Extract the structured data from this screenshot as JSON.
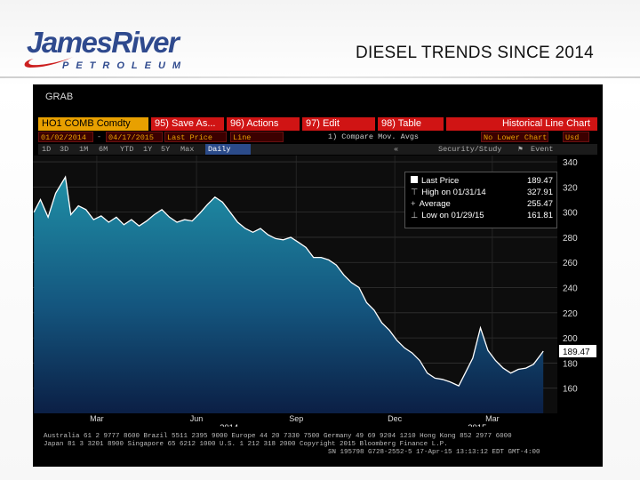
{
  "header": {
    "logo_main": "JamesRiver",
    "logo_sub": "PETROLEUM",
    "title": "DIESEL TRENDS SINCE 2014"
  },
  "terminal": {
    "grab": "GRAB",
    "ticker": "HO1 COMB Comdty",
    "menu": {
      "save": "95) Save As...",
      "actions": "96) Actions",
      "edit": "97) Edit",
      "table": "98) Table",
      "view_title": "Historical Line Chart"
    },
    "options": {
      "start_date": "01/02/2014",
      "end_date": "04/17/2015",
      "field": "Last Price",
      "style": "Line",
      "compare": "1) Compare Mov. Avgs",
      "lower_chart": "No Lower Chart",
      "currency": "Usd"
    },
    "periods": [
      "1D",
      "3D",
      "1M",
      "6M",
      "YTD",
      "1Y",
      "5Y",
      "Max"
    ],
    "frequency": "Daily",
    "tools": {
      "security": "Security/Study",
      "events": "Event"
    },
    "legend": {
      "last_label": "Last Price",
      "last_value": "189.47",
      "high_label": "High on 01/31/14",
      "high_value": "327.91",
      "avg_label": "Average",
      "avg_value": "255.47",
      "low_label": "Low on 01/29/15",
      "low_value": "161.81"
    },
    "footer_line1": "Australia 61 2 9777 8600 Brazil 5511 2395 9000 Europe 44 20 7330 7500 Germany 49 69 9204 1210 Hong Kong 852 2977 6000",
    "footer_line2": "Japan 81 3 3201 8900     Singapore 65 6212 1000     U.S. 1 212 318 2000     Copyright 2015 Bloomberg Finance L.P.",
    "footer_line3": "SN 195798 G728-2552-5 17-Apr-15 13:13:12 EDT  GMT-4:00"
  },
  "chart_data": {
    "type": "area",
    "title": "",
    "xlabel": "",
    "ylabel": "",
    "x_ticks": [
      "Mar",
      "Jun",
      "Sep",
      "Dec",
      "Mar"
    ],
    "year_labels": [
      "2014",
      "2015"
    ],
    "y_ticks": [
      160,
      180,
      200,
      220,
      240,
      260,
      280,
      300,
      320,
      340
    ],
    "ylim": [
      140,
      345
    ],
    "last_price_tag": "189.47",
    "grid": true,
    "series": [
      {
        "dates": [
          "2014-01-02",
          "2014-01-08",
          "2014-01-15",
          "2014-01-22",
          "2014-01-31",
          "2014-02-05",
          "2014-02-12",
          "2014-02-19",
          "2014-02-26",
          "2014-03-05",
          "2014-03-12",
          "2014-03-19",
          "2014-03-26",
          "2014-04-02",
          "2014-04-09",
          "2014-04-16",
          "2014-04-23",
          "2014-04-30",
          "2014-05-07",
          "2014-05-14",
          "2014-05-21",
          "2014-05-28",
          "2014-06-04",
          "2014-06-11",
          "2014-06-18",
          "2014-06-25",
          "2014-07-02",
          "2014-07-09",
          "2014-07-16",
          "2014-07-23",
          "2014-07-30",
          "2014-08-06",
          "2014-08-13",
          "2014-08-20",
          "2014-08-27",
          "2014-09-03",
          "2014-09-10",
          "2014-09-17",
          "2014-09-24",
          "2014-10-01",
          "2014-10-08",
          "2014-10-15",
          "2014-10-22",
          "2014-10-29",
          "2014-11-05",
          "2014-11-12",
          "2014-11-19",
          "2014-11-26",
          "2014-12-03",
          "2014-12-10",
          "2014-12-17",
          "2014-12-24",
          "2014-12-31",
          "2015-01-07",
          "2015-01-14",
          "2015-01-21",
          "2015-01-29",
          "2015-02-04",
          "2015-02-11",
          "2015-02-18",
          "2015-02-25",
          "2015-03-04",
          "2015-03-11",
          "2015-03-18",
          "2015-03-25",
          "2015-04-01",
          "2015-04-08",
          "2015-04-15",
          "2015-04-17"
        ],
        "values": [
          300,
          310,
          296,
          315,
          327.91,
          298,
          305,
          302,
          294,
          297,
          292,
          296,
          290,
          294,
          289,
          293,
          298,
          302,
          296,
          292,
          294,
          293,
          299,
          306,
          312,
          308,
          300,
          292,
          287,
          284,
          287,
          282,
          279,
          278,
          280,
          276,
          272,
          264,
          264,
          262,
          258,
          250,
          244,
          240,
          228,
          222,
          212,
          206,
          198,
          192,
          188,
          182,
          172,
          168,
          167,
          165,
          161.81,
          172,
          184,
          208,
          190,
          182,
          176,
          172,
          175,
          176,
          179,
          187,
          189.47
        ]
      }
    ]
  }
}
